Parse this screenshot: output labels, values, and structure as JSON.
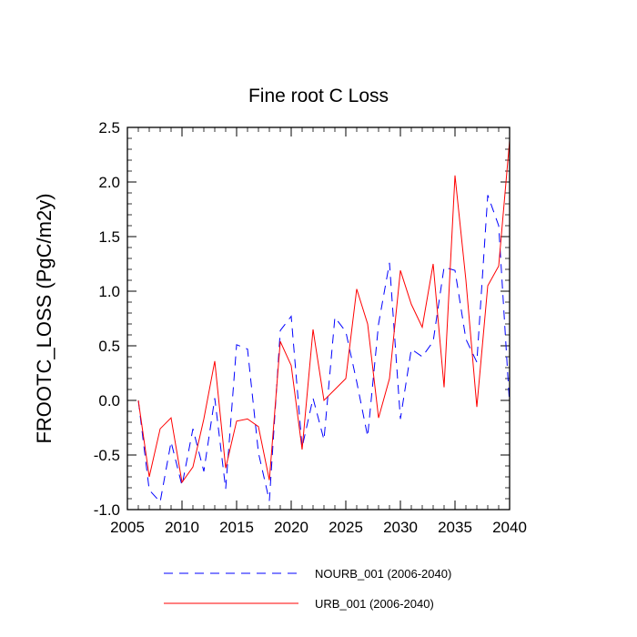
{
  "chart_data": {
    "type": "line",
    "title": "Fine root C Loss",
    "xlabel": "",
    "ylabel": "FROOTC_LOSS  (PgC/m2y)",
    "xlim": [
      2005,
      2040
    ],
    "ylim": [
      -1.0,
      2.5
    ],
    "x_ticks": [
      2005,
      2010,
      2015,
      2020,
      2025,
      2030,
      2035,
      2040
    ],
    "y_ticks": [
      -1.0,
      -0.5,
      0.0,
      0.5,
      1.0,
      1.5,
      2.0,
      2.5
    ],
    "x_tick_labels": [
      "2005",
      "2010",
      "2015",
      "2020",
      "2025",
      "2030",
      "2035",
      "2040"
    ],
    "y_tick_labels": [
      "-1.0",
      "-0.5",
      "0.0",
      "0.5",
      "1.0",
      "1.5",
      "2.0",
      "2.5"
    ],
    "x": [
      2006,
      2007,
      2008,
      2009,
      2010,
      2011,
      2012,
      2013,
      2014,
      2015,
      2016,
      2017,
      2018,
      2019,
      2020,
      2021,
      2022,
      2023,
      2024,
      2025,
      2026,
      2027,
      2028,
      2029,
      2030,
      2031,
      2032,
      2033,
      2034,
      2035,
      2036,
      2037,
      2038,
      2039,
      2040
    ],
    "series": [
      {
        "name": "NOURB_001 (2006-2040)",
        "color": "#0000ff",
        "dash": "dashed",
        "values": [
          0.0,
          -0.82,
          -0.93,
          -0.38,
          -0.78,
          -0.26,
          -0.65,
          0.02,
          -0.81,
          0.51,
          0.47,
          -0.48,
          -0.92,
          0.64,
          0.77,
          -0.43,
          0.02,
          -0.36,
          0.76,
          0.63,
          0.17,
          -0.33,
          0.7,
          1.26,
          -0.17,
          0.47,
          0.4,
          0.54,
          1.22,
          1.19,
          0.56,
          0.35,
          1.88,
          1.6,
          -0.04
        ]
      },
      {
        "name": "URB_001 (2006-2040)",
        "color": "#ff0000",
        "dash": "solid",
        "values": [
          0.0,
          -0.7,
          -0.26,
          -0.16,
          -0.75,
          -0.61,
          -0.17,
          0.36,
          -0.62,
          -0.19,
          -0.17,
          -0.24,
          -0.73,
          0.54,
          0.32,
          -0.45,
          0.65,
          0.0,
          0.1,
          0.2,
          1.02,
          0.7,
          -0.16,
          0.2,
          1.19,
          0.88,
          0.67,
          1.25,
          0.12,
          2.06,
          1.1,
          -0.06,
          1.05,
          1.23,
          2.38
        ]
      }
    ],
    "legend_position": "bottom",
    "grid": false
  }
}
